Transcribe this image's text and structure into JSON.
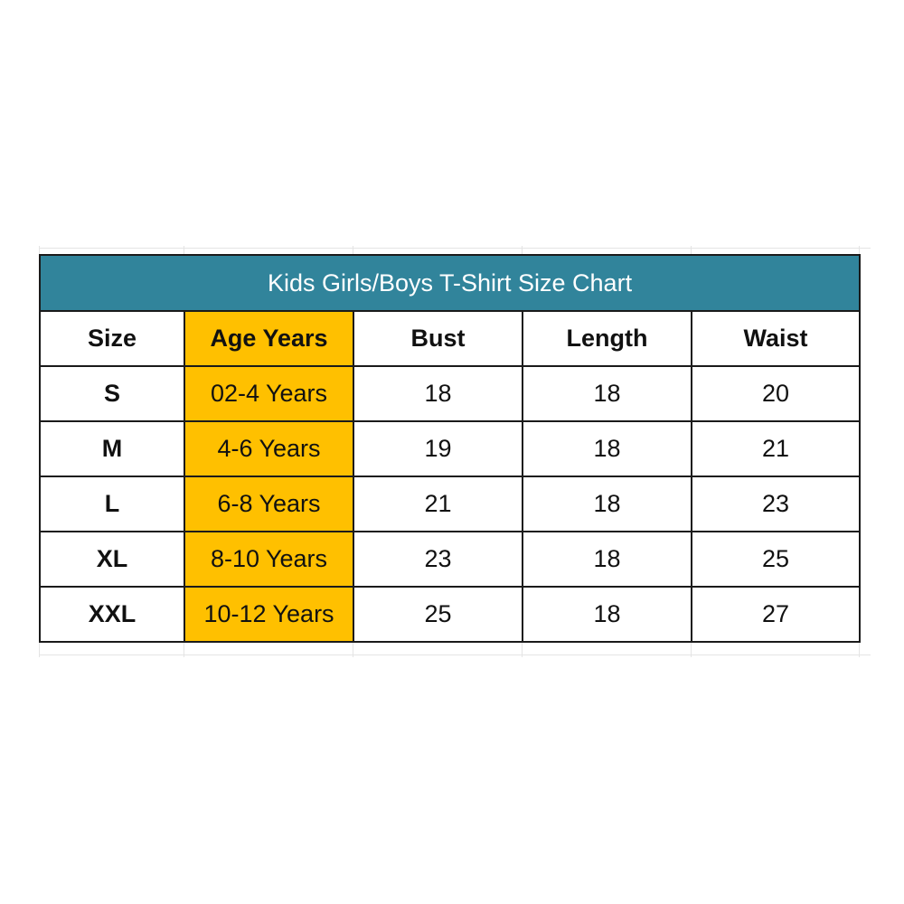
{
  "title": "Kids Girls/Boys T-Shirt Size Chart",
  "colors": {
    "title_bg": "#31849b",
    "age_column_bg": "#ffc000"
  },
  "headers": [
    "Size",
    "Age Years",
    "Bust",
    "Length",
    "Waist"
  ],
  "rows": [
    [
      "S",
      "02-4 Years",
      "18",
      "18",
      "20"
    ],
    [
      "M",
      "4-6 Years",
      "19",
      "18",
      "21"
    ],
    [
      "L",
      "6-8 Years",
      "21",
      "18",
      "23"
    ],
    [
      "XL",
      "8-10 Years",
      "23",
      "18",
      "25"
    ],
    [
      "XXL",
      "10-12 Years",
      "25",
      "18",
      "27"
    ]
  ]
}
